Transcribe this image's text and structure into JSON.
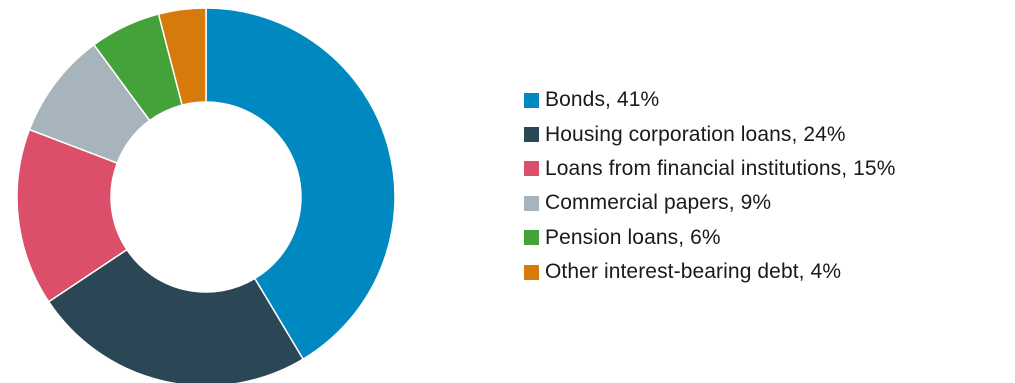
{
  "chart_data": {
    "type": "pie",
    "donut": true,
    "legend_position": "right",
    "categories": [
      "Bonds",
      "Housing corporation loans",
      "Loans from financial institutions",
      "Commercial papers",
      "Pension loans",
      "Other interest-bearing debt"
    ],
    "values": [
      41,
      24,
      15,
      9,
      6,
      4
    ],
    "colors": [
      "#0088c0",
      "#2b4755",
      "#db4f6b",
      "#a8b4bb",
      "#43a33a",
      "#d67a0c"
    ],
    "legend_labels": [
      "Bonds, 41%",
      "Housing corporation loans, 24%",
      "Loans from financial institutions, 15%",
      "Commercial papers, 9%",
      "Pension loans, 6%",
      "Other interest-bearing debt, 4%"
    ],
    "title": "",
    "start_angle_deg": 0,
    "direction": "clockwise"
  }
}
